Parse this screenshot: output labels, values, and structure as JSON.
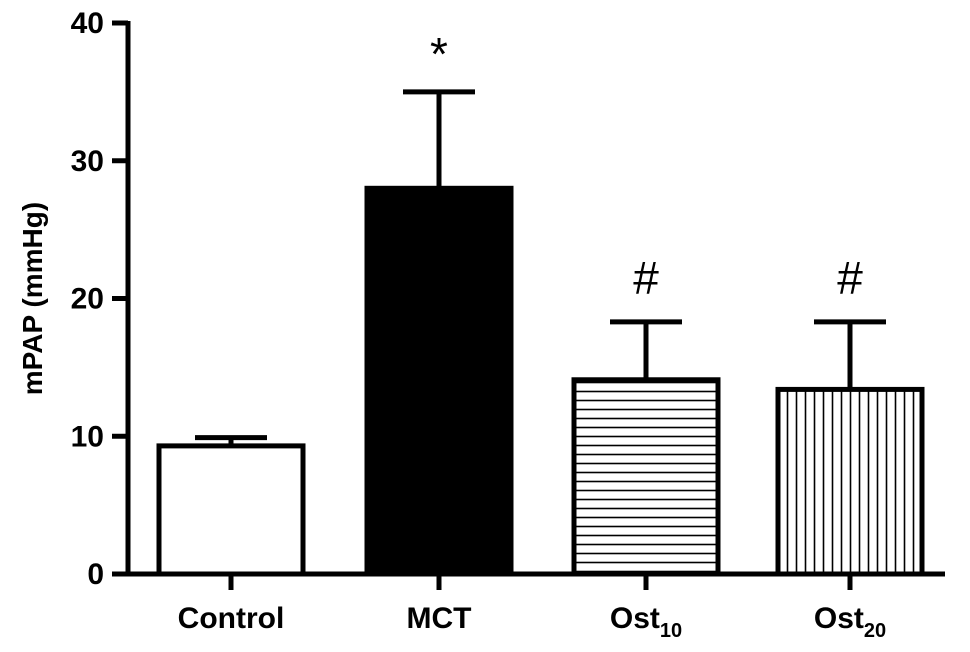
{
  "chart_data": {
    "type": "bar",
    "title": "",
    "ylabel": "mPAP (mmHg)",
    "xlabel": "",
    "ylim": [
      0,
      40
    ],
    "yticks": [
      0,
      10,
      20,
      30,
      40
    ],
    "grid": false,
    "categories": [
      {
        "label": "Control",
        "sub": ""
      },
      {
        "label": "MCT",
        "sub": ""
      },
      {
        "label": "Ost",
        "sub": "10"
      },
      {
        "label": "Ost",
        "sub": "20"
      }
    ],
    "values": [
      9.3,
      28.0,
      14.1,
      13.4
    ],
    "error_upper": [
      9.9,
      35.0,
      18.3,
      18.3
    ],
    "fill_patterns": [
      "white",
      "black",
      "horizontal-lines",
      "vertical-lines"
    ],
    "significance_marks": [
      "",
      "*",
      "#",
      "#"
    ]
  }
}
